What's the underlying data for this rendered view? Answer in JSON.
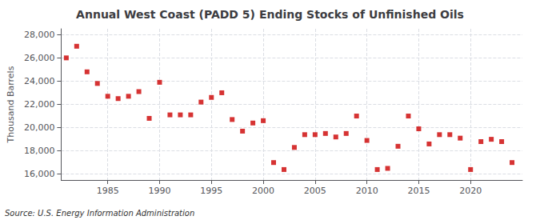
{
  "chart_data": {
    "type": "scatter",
    "title": "Annual West Coast (PADD 5) Ending Stocks of Unfinished Oils",
    "ylabel": "Thousand Barrels",
    "annotations": [
      "Source: U.S. Energy Information Administration"
    ],
    "x": [
      1981,
      1982,
      1983,
      1984,
      1985,
      1986,
      1987,
      1988,
      1989,
      1990,
      1991,
      1992,
      1993,
      1994,
      1995,
      1996,
      1997,
      1998,
      1999,
      2000,
      2001,
      2002,
      2003,
      2004,
      2005,
      2006,
      2007,
      2008,
      2009,
      2010,
      2011,
      2012,
      2013,
      2014,
      2015,
      2016,
      2017,
      2018,
      2019,
      2020,
      2021,
      2022,
      2023,
      2024
    ],
    "values": [
      26000,
      27000,
      24800,
      23800,
      22700,
      22500,
      22700,
      23100,
      20800,
      23900,
      21100,
      21100,
      21100,
      22200,
      22600,
      23000,
      20700,
      19700,
      20400,
      20600,
      17000,
      16400,
      18300,
      19400,
      19400,
      19500,
      19200,
      19500,
      21000,
      18900,
      16400,
      16500,
      18400,
      21000,
      19900,
      18600,
      19400,
      19400,
      19100,
      16400,
      18800,
      19000,
      18800,
      17000
    ],
    "color": "#cc0000",
    "marker": "square",
    "xlim": [
      1980.5,
      2025
    ],
    "xticks": [
      1985,
      1990,
      1995,
      2000,
      2005,
      2010,
      2015,
      2020
    ],
    "ylim": [
      15500,
      28500
    ],
    "yticks": [
      {
        "value": 16000,
        "label": "16,000"
      },
      {
        "value": 18000,
        "label": "18,000"
      },
      {
        "value": 20000,
        "label": "20,000"
      },
      {
        "value": 22000,
        "label": "22,000"
      },
      {
        "value": 24000,
        "label": "24,000"
      },
      {
        "value": 26000,
        "label": "26,000"
      },
      {
        "value": 28000,
        "label": "28,000"
      }
    ],
    "grid": true
  }
}
